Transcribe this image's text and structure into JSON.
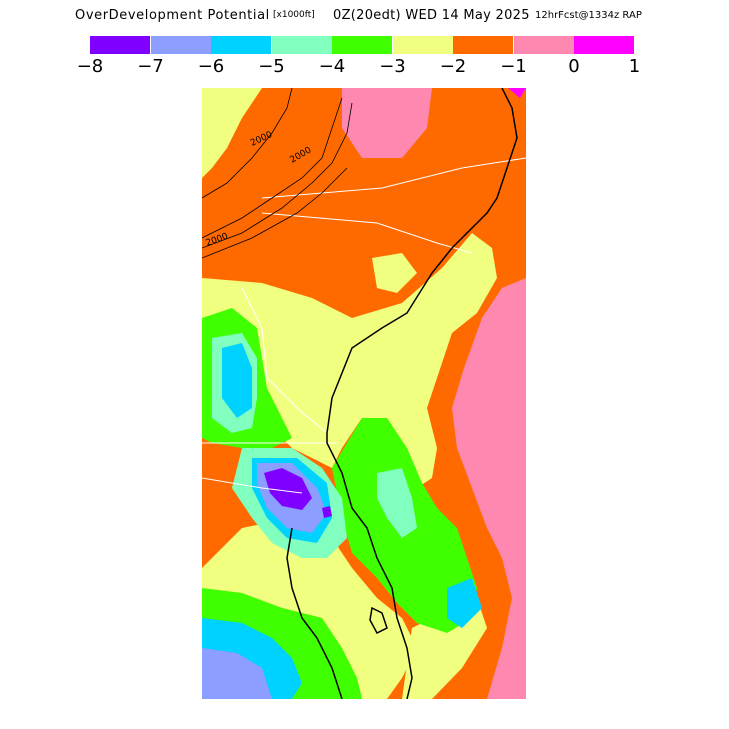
{
  "title": {
    "main": "OverDevelopment Potential",
    "units": "[x1000ft]",
    "valid_time": "0Z(20edt) WED 14 May 2025",
    "forecast": "12hrFcst@1334z RAP"
  },
  "legend": {
    "colors": [
      "#8000ff",
      "#8c9eff",
      "#00d2ff",
      "#80ffbe",
      "#40ff00",
      "#f0ff80",
      "#ff6a00",
      "#ff88b0",
      "#ff00ff"
    ],
    "tick_labels": [
      "−8",
      "−7",
      "−6",
      "−5",
      "−4",
      "−3",
      "−2",
      "−1",
      "0",
      "1"
    ]
  },
  "map": {
    "contour_labels": [
      "2000",
      "2000",
      "2000"
    ]
  }
}
